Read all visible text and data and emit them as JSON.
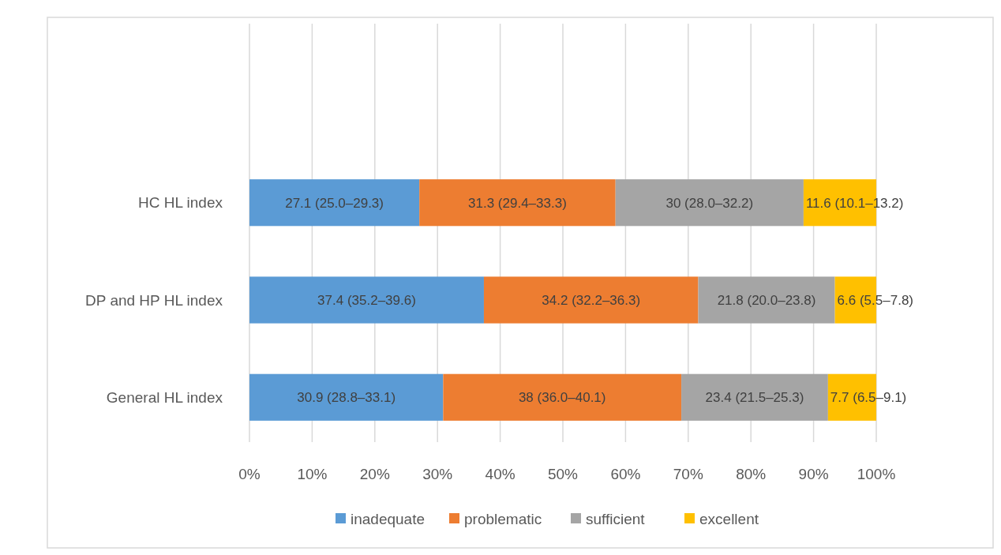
{
  "chart_data": {
    "type": "bar",
    "orientation": "horizontal",
    "stacked": true,
    "categories": [
      "HC HL index",
      "DP and HP HL index",
      "General HL index"
    ],
    "series": [
      {
        "name": "inadequate",
        "color": "#5b9bd5",
        "values": [
          27.1,
          37.4,
          30.9
        ],
        "value_labels": [
          "27.1 (25.0–29.3)",
          "37.4 (35.2–39.6)",
          "30.9 (28.8–33.1)"
        ]
      },
      {
        "name": "problematic",
        "color": "#ed7d31",
        "values": [
          31.3,
          34.2,
          38
        ],
        "value_labels": [
          "31.3 (29.4–33.3)",
          "34.2 (32.2–36.3)",
          "38 (36.0–40.1)"
        ]
      },
      {
        "name": "sufficient",
        "color": "#a5a5a5",
        "values": [
          30,
          21.8,
          23.4
        ],
        "value_labels": [
          "30 (28.0–32.2)",
          "21.8 (20.0–23.8)",
          "23.4 (21.5–25.3)"
        ]
      },
      {
        "name": "excellent",
        "color": "#ffc000",
        "values": [
          11.6,
          6.6,
          7.7
        ],
        "value_labels": [
          "11.6 (10.1–13.2)",
          "6.6 (5.5–7.8)",
          "7.7 (6.5–9.1)"
        ]
      }
    ],
    "xlim": [
      0,
      100
    ],
    "xticks": [
      {
        "value": 0,
        "label": "0%"
      },
      {
        "value": 10,
        "label": "10%"
      },
      {
        "value": 20,
        "label": "20%"
      },
      {
        "value": 30,
        "label": "30%"
      },
      {
        "value": 40,
        "label": "40%"
      },
      {
        "value": 50,
        "label": "50%"
      },
      {
        "value": 60,
        "label": "60%"
      },
      {
        "value": 70,
        "label": "70%"
      },
      {
        "value": 80,
        "label": "80%"
      },
      {
        "value": 90,
        "label": "90%"
      },
      {
        "value": 100,
        "label": "100%"
      }
    ],
    "grid": "x",
    "legend": "bottom"
  }
}
